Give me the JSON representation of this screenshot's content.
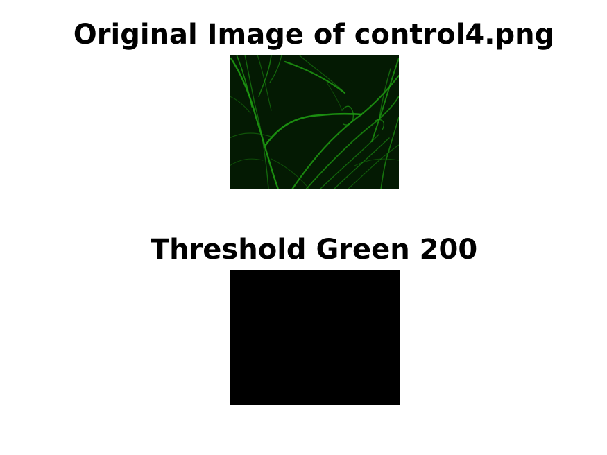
{
  "figure": {
    "original": {
      "title": "Original Image of control4.png",
      "background_color": "#041a03",
      "filament_color": "#1e9a12"
    },
    "threshold": {
      "title": "Threshold Green 200",
      "fill_color": "#000000"
    }
  }
}
